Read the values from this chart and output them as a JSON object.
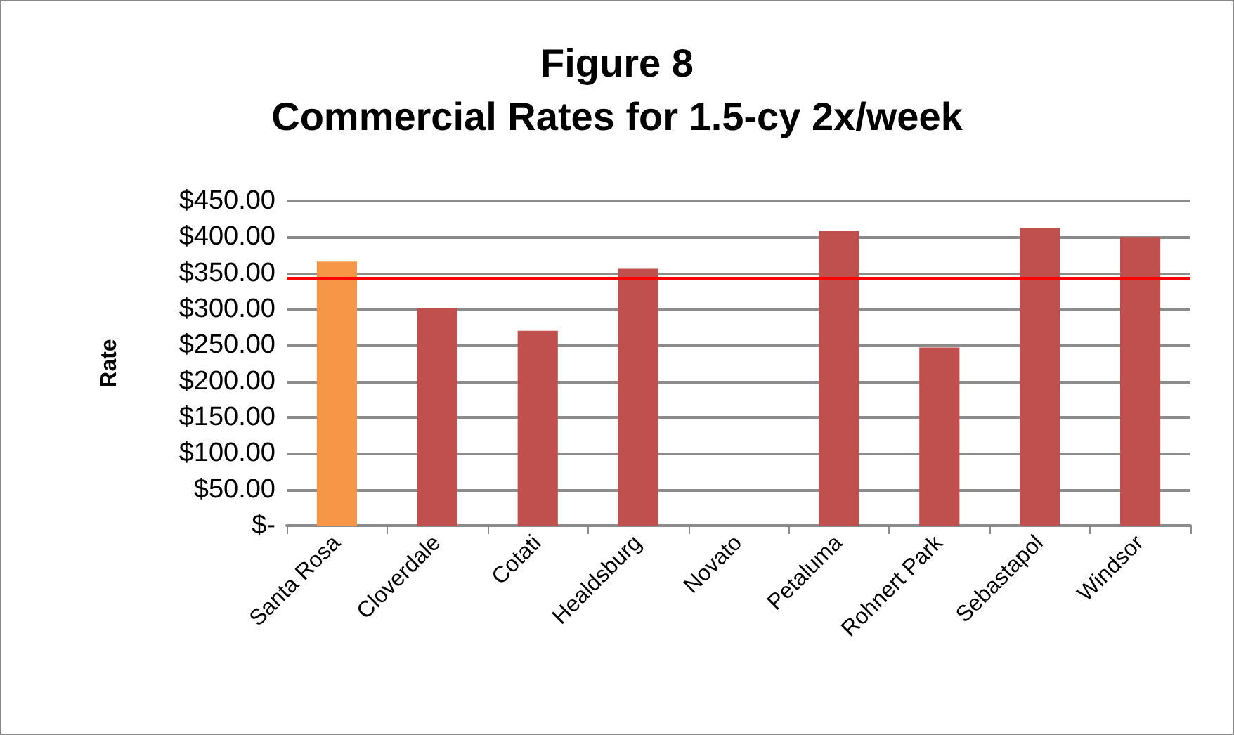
{
  "chart_data": {
    "type": "bar",
    "title": "Figure 8\nCommercial Rates for 1.5-cy 2x/week",
    "ylabel": "Rate",
    "categories": [
      "Santa Rosa",
      "Cloverdale",
      "Cotati",
      "Healdsburg",
      "Novato",
      "Petaluma",
      "Rohnert Park",
      "Sebastapol",
      "Windsor"
    ],
    "values": [
      366,
      302,
      270,
      356,
      null,
      408,
      247,
      413,
      400
    ],
    "colors": [
      "#f79646",
      "#c0504d",
      "#c0504d",
      "#c0504d",
      "#c0504d",
      "#c0504d",
      "#c0504d",
      "#c0504d",
      "#c0504d"
    ],
    "ylim": [
      0,
      450
    ],
    "yticks": [
      {
        "value": 0,
        "label": "$-"
      },
      {
        "value": 50,
        "label": "$50.00"
      },
      {
        "value": 100,
        "label": "$100.00"
      },
      {
        "value": 150,
        "label": "$150.00"
      },
      {
        "value": 200,
        "label": "$200.00"
      },
      {
        "value": 250,
        "label": "$250.00"
      },
      {
        "value": 300,
        "label": "$300.00"
      },
      {
        "value": 350,
        "label": "$350.00"
      },
      {
        "value": 400,
        "label": "$400.00"
      },
      {
        "value": 450,
        "label": "$450.00"
      }
    ],
    "ref_lines": [
      {
        "axis": "y",
        "value": 343,
        "color": "#ff0000"
      }
    ],
    "grid": "y"
  }
}
